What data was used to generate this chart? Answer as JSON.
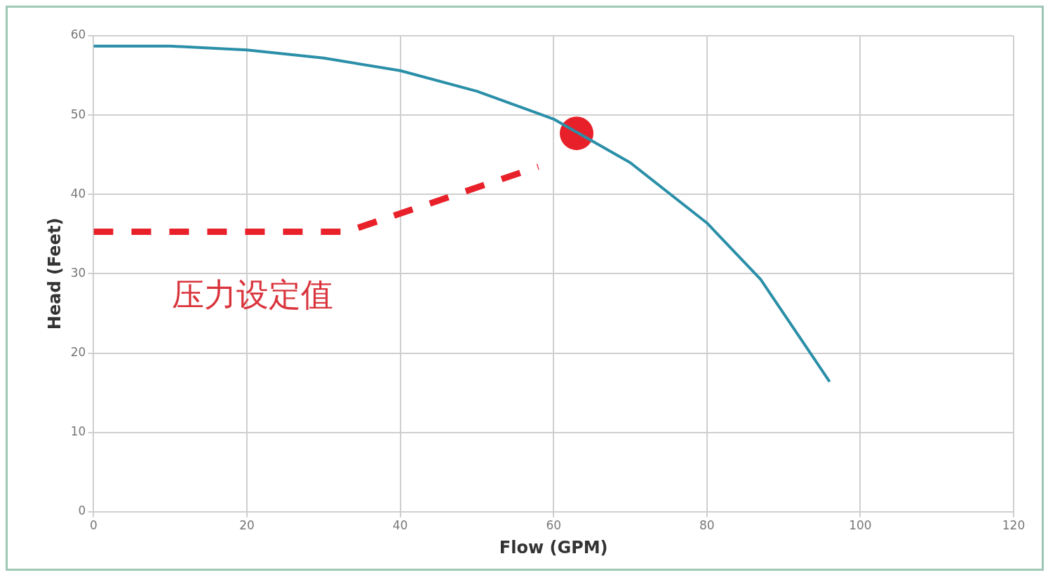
{
  "chart_data": {
    "type": "line",
    "xlabel": "Flow (GPM)",
    "ylabel": "Head (Feet)",
    "xlim": [
      0,
      120
    ],
    "xticks": [
      0,
      20,
      40,
      60,
      80,
      100,
      120
    ],
    "ylim": [
      0,
      60
    ],
    "yticks": [
      0,
      10,
      20,
      30,
      40,
      50,
      60
    ],
    "grid": true,
    "legend": false,
    "annotations": [
      "压力设定值"
    ],
    "series": [
      {
        "type": "line",
        "color": "#2a8fa8",
        "marker": "none",
        "line_style": "solid",
        "x": [
          0,
          10,
          20,
          30,
          40,
          50,
          60,
          70,
          80,
          87,
          96
        ],
        "values": [
          58.7,
          58.7,
          58.2,
          57.2,
          55.6,
          53,
          49.5,
          44,
          36.4,
          29.3,
          16.4
        ]
      },
      {
        "type": "line",
        "color": "#e8202a",
        "marker": "none",
        "line_style": "dashed",
        "x": [
          0,
          33,
          58
        ],
        "values": [
          35.3,
          35.3,
          43.5
        ]
      },
      {
        "type": "scatter",
        "color": "#e8202a",
        "marker": "circle",
        "x": [
          63
        ],
        "values": [
          47.7
        ]
      }
    ]
  }
}
